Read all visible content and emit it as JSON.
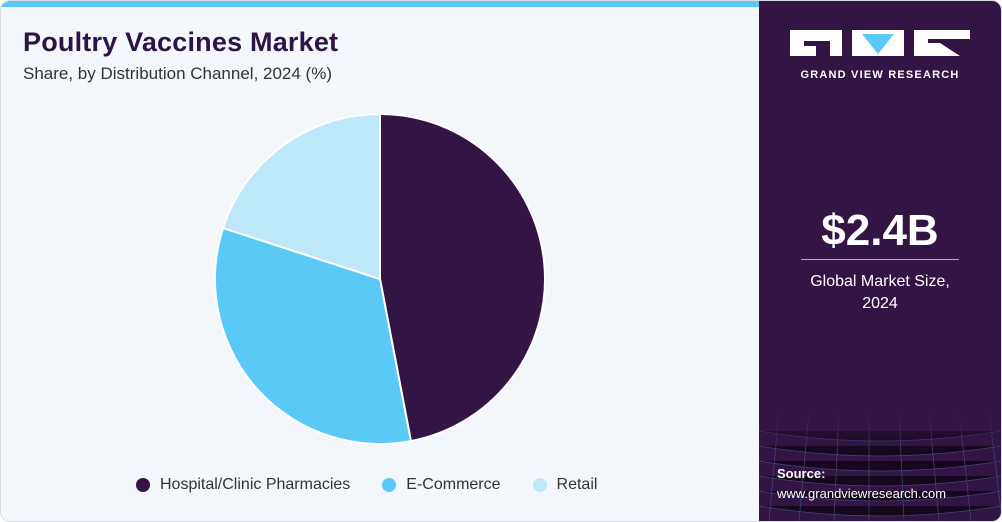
{
  "header": {
    "title": "Poultry Vaccines Market",
    "subtitle": "Share, by Distribution Channel, 2024 (%)"
  },
  "chart_data": {
    "type": "pie",
    "title": "Poultry Vaccines Market",
    "subtitle": "Share, by Distribution Channel, 2024 (%)",
    "categories": [
      "Hospital/Clinic Pharmacies",
      "E-Commerce",
      "Retail"
    ],
    "values": [
      47,
      33,
      20
    ],
    "colors": [
      "#321544",
      "#5bc9f5",
      "#bde8fa"
    ],
    "legend": "bottom",
    "start_angle": "12 o'clock, clockwise"
  },
  "sidebar": {
    "brand": "GRAND VIEW RESEARCH",
    "market_size": "$2.4B",
    "market_size_caption_line1": "Global Market Size,",
    "market_size_caption_line2": "2024",
    "source_label": "Source:",
    "source_url": "www.grandviewresearch.com"
  },
  "colors": {
    "background": "#f3f7fb",
    "sidebar": "#321544",
    "accent": "#5bc9f5",
    "title": "#2c1445"
  }
}
